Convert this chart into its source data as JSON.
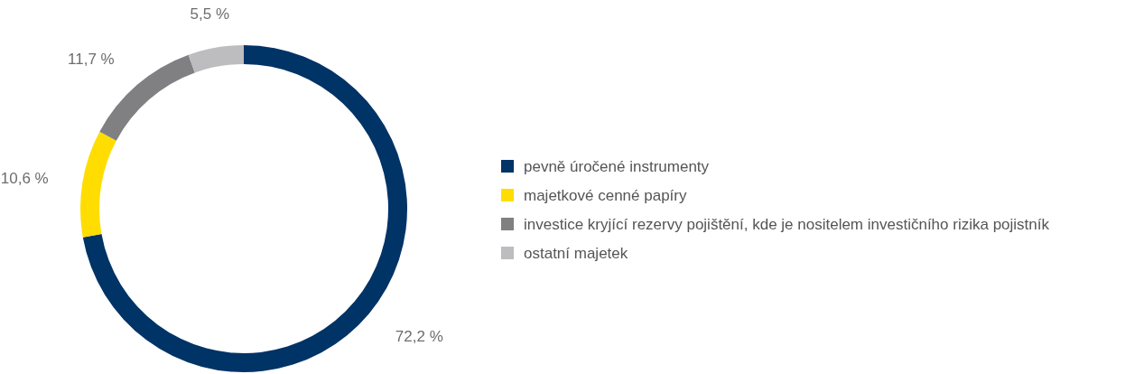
{
  "chart_data": {
    "type": "donut",
    "categories": [
      "pevně úročené instrumenty",
      "majetkové cenné papíry",
      "investice kryjící rezervy pojištění, kde je nositelem investičního rizika pojistník",
      "ostatní majetek"
    ],
    "values": [
      72.2,
      10.6,
      11.7,
      5.5
    ],
    "colors": [
      "#003366",
      "#ffdd00",
      "#808083",
      "#bdbdc0"
    ],
    "value_labels": [
      "72,2 %",
      "10,6 %",
      "11,7 %",
      "5,5 %"
    ],
    "legend": "right"
  }
}
